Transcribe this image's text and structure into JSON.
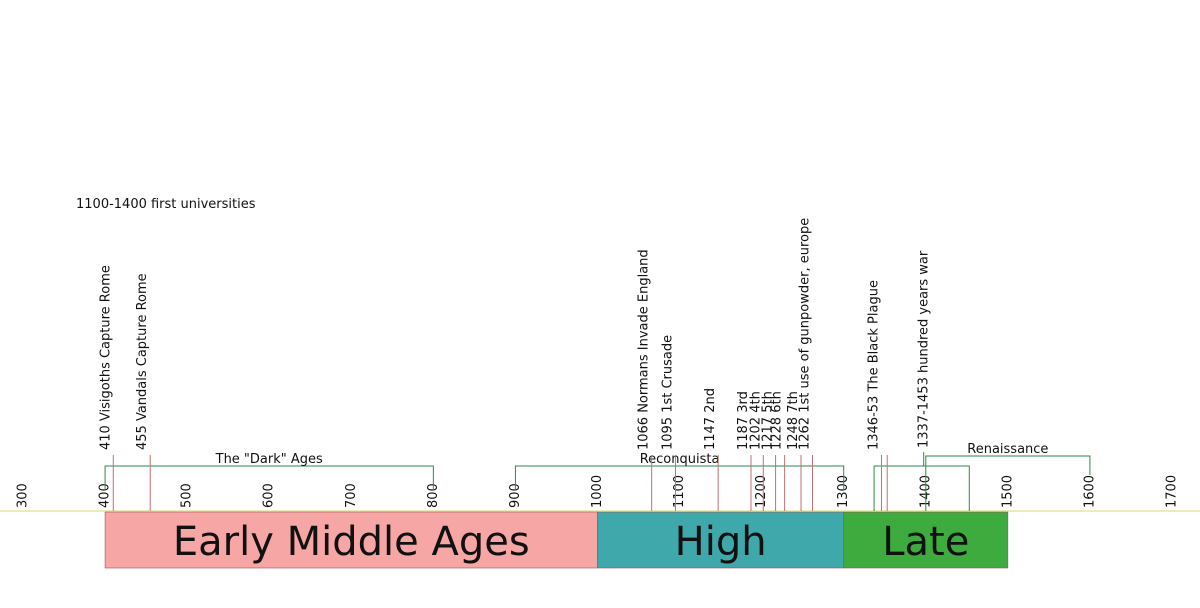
{
  "header": {
    "note": "1100-1400 first universities"
  },
  "axis": {
    "ticks": [
      300,
      400,
      500,
      600,
      700,
      800,
      900,
      1000,
      1100,
      1200,
      1300,
      1400,
      1500,
      1600,
      1700
    ]
  },
  "periods": [
    {
      "label": "Early Middle Ages",
      "start": 400,
      "end": 1000,
      "color": "#f7a6a6"
    },
    {
      "label": "High",
      "start": 1000,
      "end": 1300,
      "color": "#3ea8aa"
    },
    {
      "label": "Late",
      "start": 1300,
      "end": 1500,
      "color": "#3eab3e"
    }
  ],
  "events": [
    {
      "label": "410 Visigoths Capture Rome",
      "years": [
        410
      ]
    },
    {
      "label": "455 Vandals Capture Rome",
      "years": [
        455
      ]
    },
    {
      "label": "1066 Normans Invade England",
      "years": [
        1066
      ]
    },
    {
      "label": "1095  1st Crusade",
      "years": [
        1095
      ]
    },
    {
      "label": "1147  2nd",
      "years": [
        1147
      ]
    },
    {
      "label": "1187  3rd",
      "years": [
        1187
      ]
    },
    {
      "label": "1202  4th",
      "years": [
        1202
      ]
    },
    {
      "label": "1217  5th",
      "years": [
        1217
      ]
    },
    {
      "label": "1228  6th",
      "years": [
        1228
      ]
    },
    {
      "label": "1248  7th",
      "years": [
        1248
      ]
    },
    {
      "label": "1262  1st use of gunpowder, europe",
      "years": [
        1262
      ]
    },
    {
      "label": "1346-53 The Black Plague",
      "years": [
        1346,
        1353
      ]
    }
  ],
  "spans": [
    {
      "label": "The \"Dark\" Ages",
      "start": 400,
      "end": 800
    },
    {
      "label": "Reconquista",
      "start": 900,
      "end": 1300
    },
    {
      "label": "Renaissance",
      "start": 1400,
      "end": 1600
    },
    {
      "label": "1337-1453 hundred years war",
      "start": 1337,
      "end": 1453
    }
  ]
}
